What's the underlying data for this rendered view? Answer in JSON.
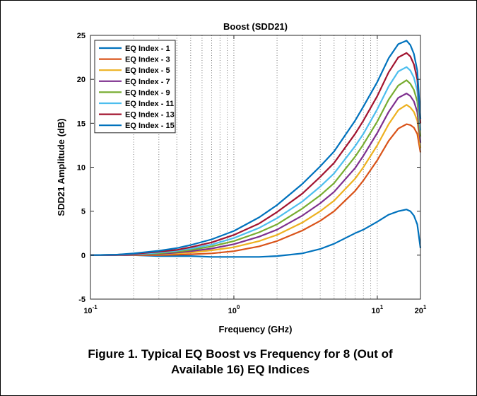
{
  "caption": {
    "line1": "Figure 1.  Typical EQ Boost vs Frequency for 8 (Out of",
    "line2": "Available 16) EQ Indices"
  },
  "chart_data": {
    "type": "line",
    "title": "Boost (SDD21)",
    "xlabel": "Frequency (GHz)",
    "ylabel": "SDD21 Amplitude (dB)",
    "xscale": "log",
    "xlim": [
      0.1,
      20
    ],
    "ylim": [
      -5,
      25
    ],
    "yticks": [
      -5,
      0,
      5,
      10,
      15,
      20,
      25
    ],
    "xticks": [
      {
        "value": 0.1,
        "base": "10",
        "exp": "-1"
      },
      {
        "value": 1,
        "base": "10",
        "exp": "0"
      },
      {
        "value": 10,
        "base": "10",
        "exp": "1"
      },
      {
        "value": 20,
        "base": "20",
        "exp": "1"
      }
    ],
    "grid": "vertical-dotted",
    "legend_position": "top-left",
    "x": [
      0.1,
      0.15,
      0.2,
      0.3,
      0.4,
      0.5,
      0.7,
      1,
      1.5,
      2,
      3,
      4,
      5,
      7,
      8,
      10,
      12,
      14,
      16,
      17,
      18,
      19,
      20
    ],
    "series": [
      {
        "name": "EQ Index - 1",
        "color": "#0072BD",
        "values": [
          0,
          0,
          0,
          -0.1,
          -0.1,
          -0.1,
          -0.2,
          -0.2,
          -0.2,
          -0.1,
          0.2,
          0.7,
          1.3,
          2.5,
          2.9,
          3.8,
          4.6,
          5,
          5.2,
          5,
          4.5,
          3.5,
          0.8
        ]
      },
      {
        "name": "EQ Index - 3",
        "color": "#D95319",
        "values": [
          0,
          0,
          0,
          0,
          0.05,
          0.1,
          0.2,
          0.45,
          1,
          1.6,
          2.8,
          3.9,
          5,
          7.3,
          8.5,
          10.8,
          13,
          14.4,
          14.9,
          14.8,
          14.5,
          13.8,
          11.7
        ]
      },
      {
        "name": "EQ Index - 5",
        "color": "#EDB120",
        "values": [
          0,
          0,
          0.05,
          0.1,
          0.2,
          0.3,
          0.55,
          0.9,
          1.6,
          2.3,
          3.7,
          5,
          6.2,
          8.7,
          10,
          12.5,
          14.9,
          16.5,
          17.1,
          16.8,
          16.3,
          15.3,
          12.2
        ]
      },
      {
        "name": "EQ Index - 7",
        "color": "#7E2F8E",
        "values": [
          0,
          0,
          0.05,
          0.15,
          0.3,
          0.45,
          0.75,
          1.25,
          2.1,
          2.9,
          4.5,
          5.9,
          7.2,
          9.9,
          11.3,
          13.9,
          16.3,
          17.9,
          18.4,
          18.1,
          17.5,
          16.3,
          12.8
        ]
      },
      {
        "name": "EQ Index - 9",
        "color": "#77AC30",
        "values": [
          0,
          0.05,
          0.1,
          0.2,
          0.4,
          0.6,
          1,
          1.6,
          2.6,
          3.5,
          5.3,
          6.8,
          8.2,
          11.2,
          12.6,
          15.2,
          17.7,
          19.3,
          19.9,
          19.5,
          18.8,
          17.5,
          13.5
        ]
      },
      {
        "name": "EQ Index - 11",
        "color": "#4DBEEE",
        "values": [
          0,
          0.05,
          0.1,
          0.3,
          0.5,
          0.75,
          1.2,
          1.95,
          3.1,
          4.2,
          6.1,
          7.8,
          9.3,
          12.4,
          13.8,
          16.6,
          19.2,
          20.9,
          21.4,
          21,
          20.2,
          18.7,
          14.2
        ]
      },
      {
        "name": "EQ Index - 13",
        "color": "#A2142F",
        "values": [
          0,
          0.05,
          0.15,
          0.4,
          0.6,
          0.9,
          1.45,
          2.3,
          3.6,
          4.9,
          7,
          8.9,
          10.5,
          13.8,
          15.3,
          18.1,
          20.8,
          22.5,
          23,
          22.6,
          21.7,
          20,
          15
        ]
      },
      {
        "name": "EQ Index - 15",
        "color": "#0072BD",
        "values": [
          0,
          0.05,
          0.2,
          0.5,
          0.8,
          1.15,
          1.8,
          2.75,
          4.3,
          5.7,
          8.1,
          10.1,
          11.8,
          15.3,
          16.9,
          19.7,
          22.4,
          24,
          24.4,
          23.9,
          22.9,
          21,
          15.5
        ]
      }
    ]
  }
}
